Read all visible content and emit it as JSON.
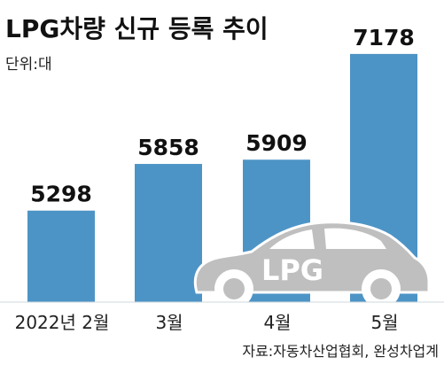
{
  "title": "LPG차량 신규 등록 추이",
  "unit": "단위:대",
  "source": "자료:자동차산업협회, 완성차업계",
  "car_label": "LPG",
  "colors": {
    "bar": "#4d94c6",
    "car": "#bfbfbf",
    "text": "#111111"
  },
  "chart_data": {
    "type": "bar",
    "categories": [
      "2022년 2월",
      "3월",
      "4월",
      "5월"
    ],
    "values": [
      5298,
      5858,
      5909,
      7178
    ],
    "title": "LPG차량 신규 등록 추이",
    "xlabel": "",
    "ylabel": "",
    "unit": "단위:대",
    "ylim": [
      4200,
      7400
    ],
    "grid": false,
    "legend": "none"
  }
}
